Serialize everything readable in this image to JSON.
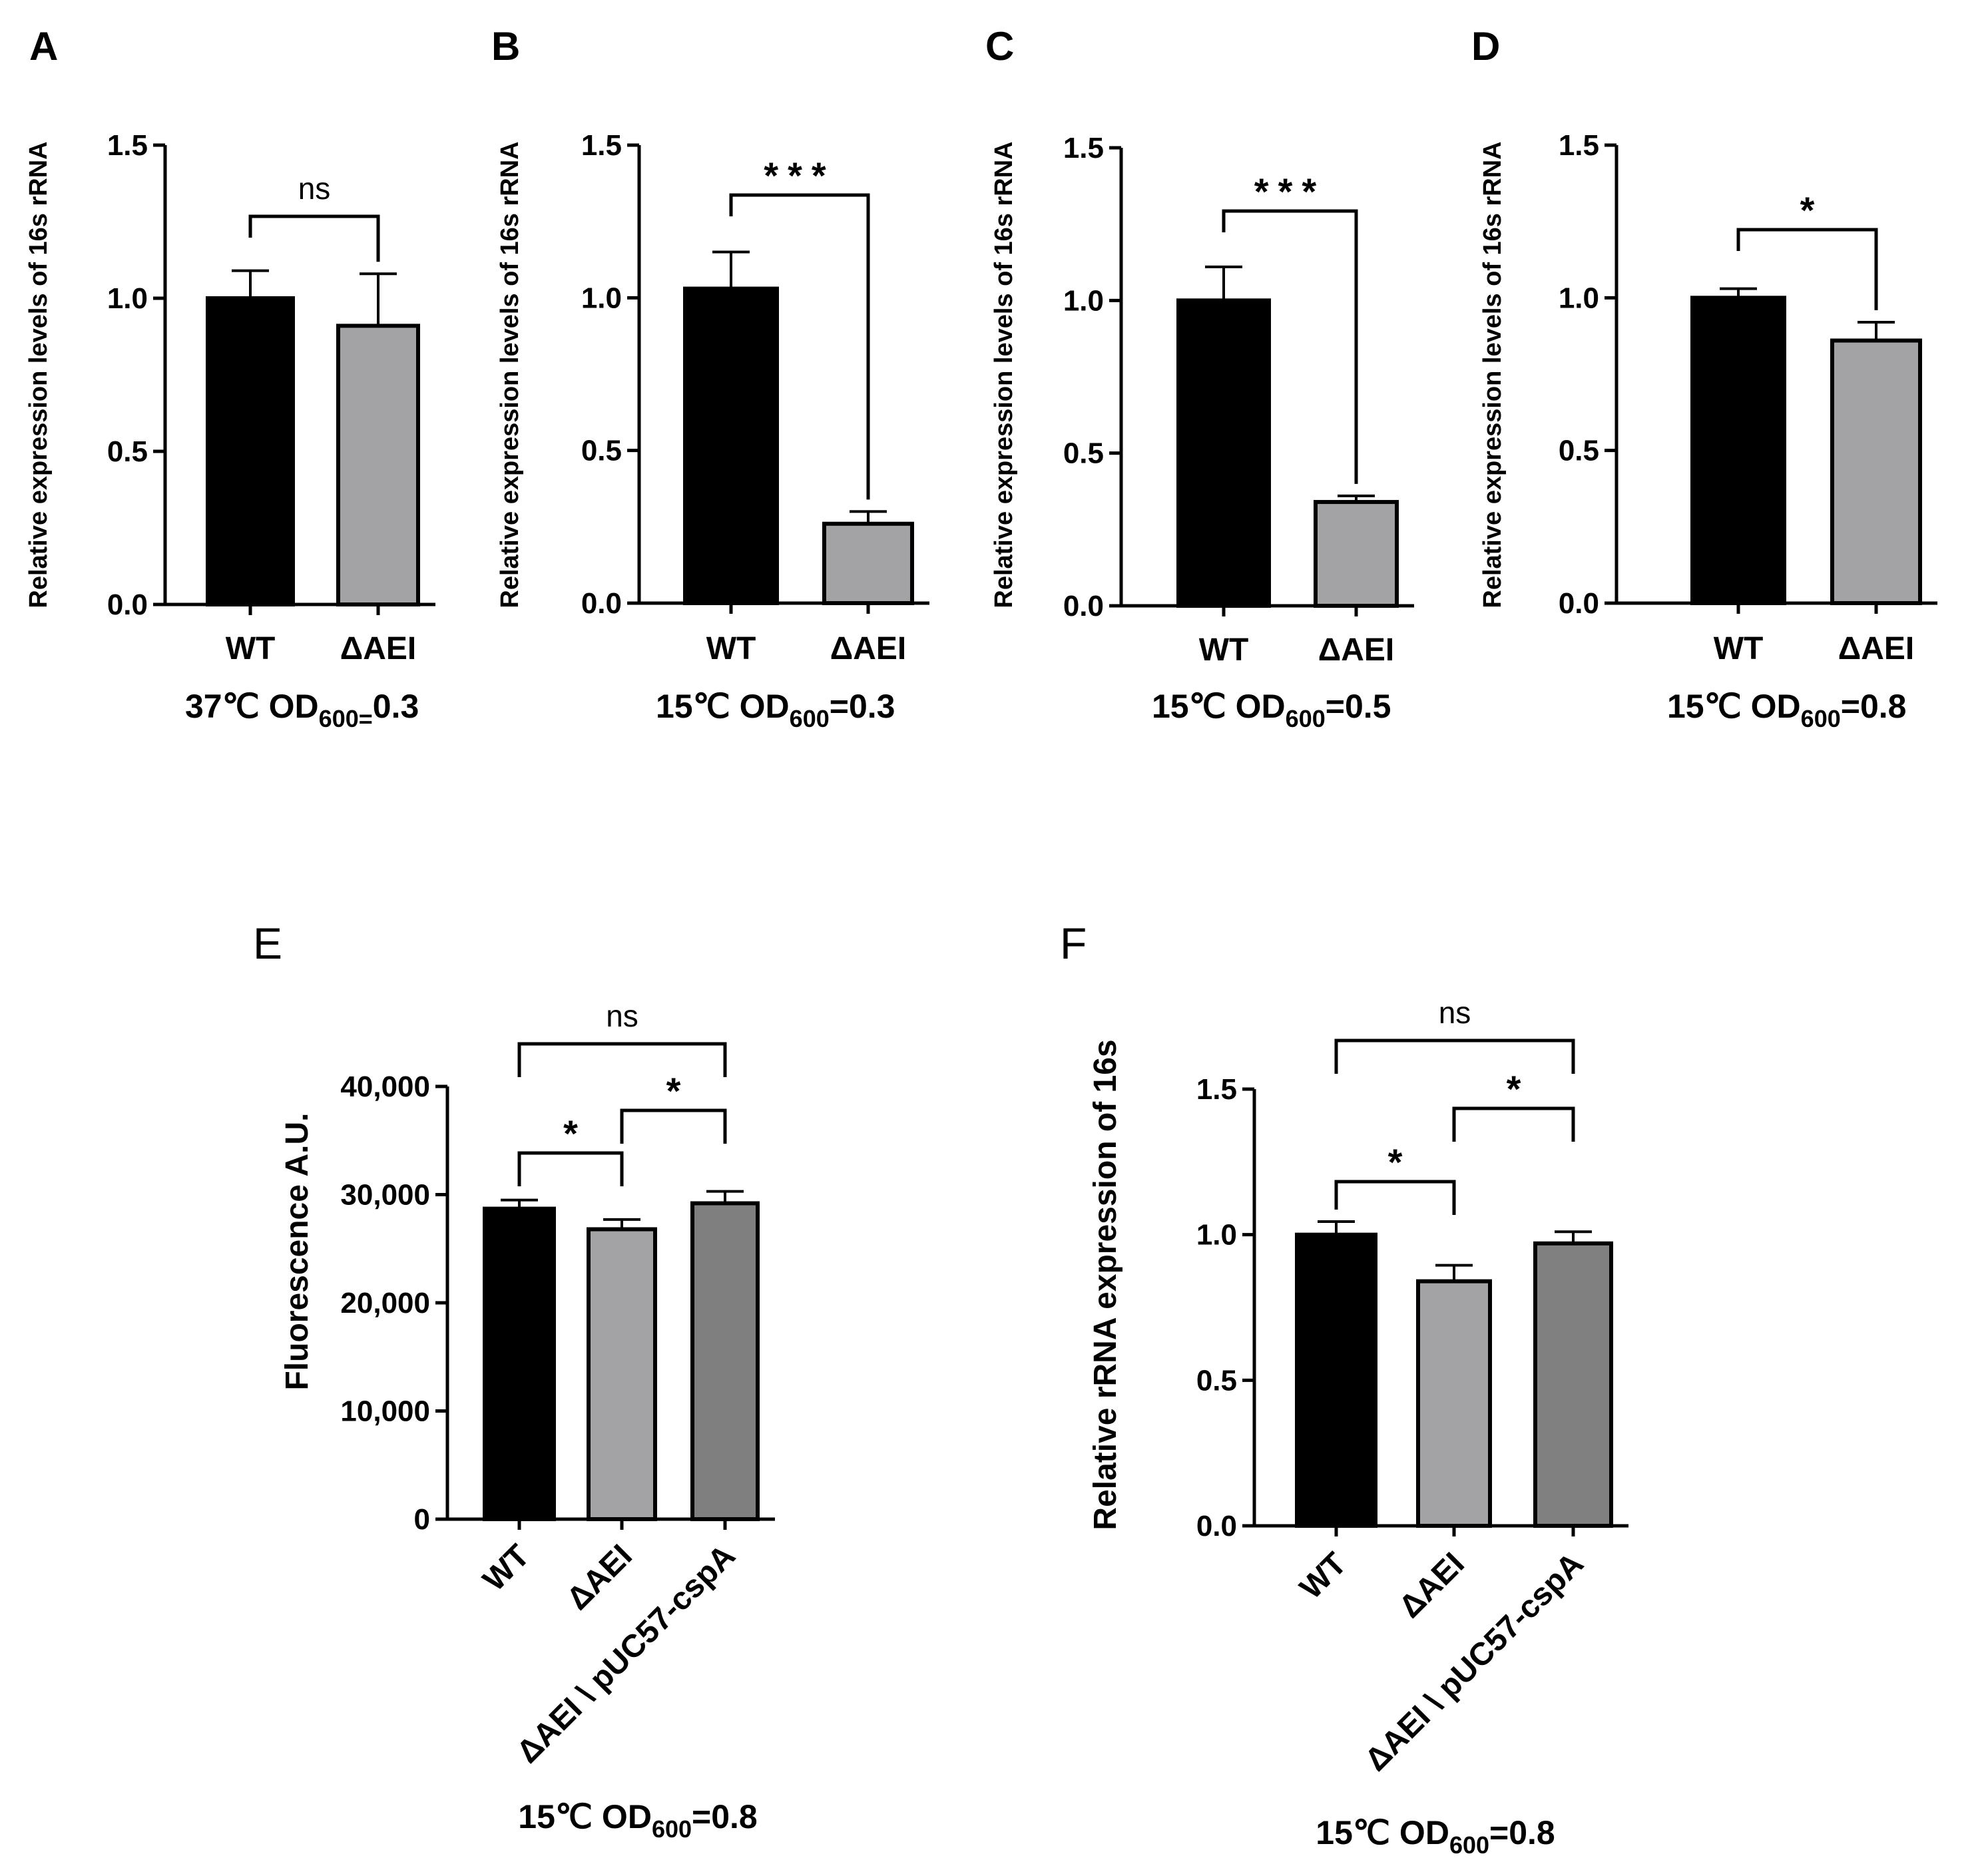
{
  "chart_data": [
    {
      "panel": "A",
      "type": "bar",
      "ylabel": "Relative expression levels of 16s rRNA",
      "ylim": [
        0,
        1.5
      ],
      "yticks": [
        "0.0",
        "0.5",
        "1.0",
        "1.5"
      ],
      "yticks_values": [
        0,
        0.5,
        1.0,
        1.5
      ],
      "categories": [
        "WT",
        "ΔAEI"
      ],
      "values": [
        1.0,
        0.91
      ],
      "errors": [
        0.09,
        0.17
      ],
      "bar_colors": [
        "#000000",
        "#a3a3a6"
      ],
      "condition": {
        "pre": "37℃ OD",
        "sub": "600=",
        "post": "0.3"
      },
      "comparisons": [
        {
          "from": 0,
          "to": 1,
          "label": "ns"
        }
      ]
    },
    {
      "panel": "B",
      "type": "bar",
      "ylabel": "Relative expression levels of 16s rRNA",
      "ylim": [
        0,
        1.5
      ],
      "yticks": [
        "0.0",
        "0.5",
        "1.0",
        "1.5"
      ],
      "yticks_values": [
        0,
        0.5,
        1.0,
        1.5
      ],
      "categories": [
        "WT",
        "ΔAEI"
      ],
      "values": [
        1.03,
        0.26
      ],
      "errors": [
        0.12,
        0.04
      ],
      "bar_colors": [
        "#000000",
        "#a3a3a6"
      ],
      "condition": {
        "pre": "15℃ OD",
        "sub": "600",
        "post": "=0.3"
      },
      "comparisons": [
        {
          "from": 0,
          "to": 1,
          "label": "***"
        }
      ]
    },
    {
      "panel": "C",
      "type": "bar",
      "ylabel": "Relative expression levels of 16s rRNA",
      "ylim": [
        0,
        1.5
      ],
      "yticks": [
        "0.0",
        "0.5",
        "1.0",
        "1.5"
      ],
      "yticks_values": [
        0,
        0.5,
        1.0,
        1.5
      ],
      "categories": [
        "WT",
        "ΔAEI"
      ],
      "values": [
        1.0,
        0.34
      ],
      "errors": [
        0.11,
        0.02
      ],
      "bar_colors": [
        "#000000",
        "#a3a3a6"
      ],
      "condition": {
        "pre": "15℃ OD",
        "sub": "600",
        "post": "=0.5"
      },
      "comparisons": [
        {
          "from": 0,
          "to": 1,
          "label": "***"
        }
      ]
    },
    {
      "panel": "D",
      "type": "bar",
      "ylabel": "Relative expression levels of 16s rRNA",
      "ylim": [
        0,
        1.5
      ],
      "yticks": [
        "0.0",
        "0.5",
        "1.0",
        "1.5"
      ],
      "yticks_values": [
        0,
        0.5,
        1.0,
        1.5
      ],
      "categories": [
        "WT",
        "ΔAEI"
      ],
      "values": [
        1.0,
        0.86
      ],
      "errors": [
        0.03,
        0.06
      ],
      "bar_colors": [
        "#000000",
        "#a3a3a6"
      ],
      "condition": {
        "pre": "15℃ OD",
        "sub": "600",
        "post": "=0.8"
      },
      "comparisons": [
        {
          "from": 0,
          "to": 1,
          "label": "*"
        }
      ]
    },
    {
      "panel": "E",
      "type": "bar",
      "ylabel": "Fluorescence A.U.",
      "ylim": [
        0,
        40000
      ],
      "yticks": [
        "0",
        "10,000",
        "20,000",
        "30,000",
        "40,000"
      ],
      "yticks_values": [
        0,
        10000,
        20000,
        30000,
        40000
      ],
      "categories": [
        "WT",
        "ΔAEI",
        "ΔAEI \\ pUC57-cspA"
      ],
      "values": [
        28700,
        26800,
        29200
      ],
      "errors": [
        800,
        900,
        1100
      ],
      "bar_colors": [
        "#000000",
        "#a3a3a6",
        "#7f7f7f"
      ],
      "condition": {
        "pre": "15℃ OD",
        "sub": "600",
        "post": "=0.8"
      },
      "comparisons": [
        {
          "from": 0,
          "to": 1,
          "label": "*"
        },
        {
          "from": 1,
          "to": 2,
          "label": "*"
        },
        {
          "from": 0,
          "to": 2,
          "label": "ns"
        }
      ]
    },
    {
      "panel": "F",
      "type": "bar",
      "ylabel": "Relative rRNA expression of 16s",
      "ylim": [
        0,
        1.5
      ],
      "yticks": [
        "0.0",
        "0.5",
        "1.0",
        "1.5"
      ],
      "yticks_values": [
        0,
        0.5,
        1.0,
        1.5
      ],
      "categories": [
        "WT",
        "ΔAEI",
        "ΔAEI \\ pUC57-cspA"
      ],
      "values": [
        1.0,
        0.84,
        0.97
      ],
      "errors": [
        0.045,
        0.055,
        0.04
      ],
      "bar_colors": [
        "#000000",
        "#a3a3a6",
        "#808080"
      ],
      "condition": {
        "pre": "15℃ OD",
        "sub": "600",
        "post": "=0.8"
      },
      "comparisons": [
        {
          "from": 0,
          "to": 1,
          "label": "*"
        },
        {
          "from": 1,
          "to": 2,
          "label": "*"
        },
        {
          "from": 0,
          "to": 2,
          "label": "ns"
        }
      ]
    }
  ]
}
